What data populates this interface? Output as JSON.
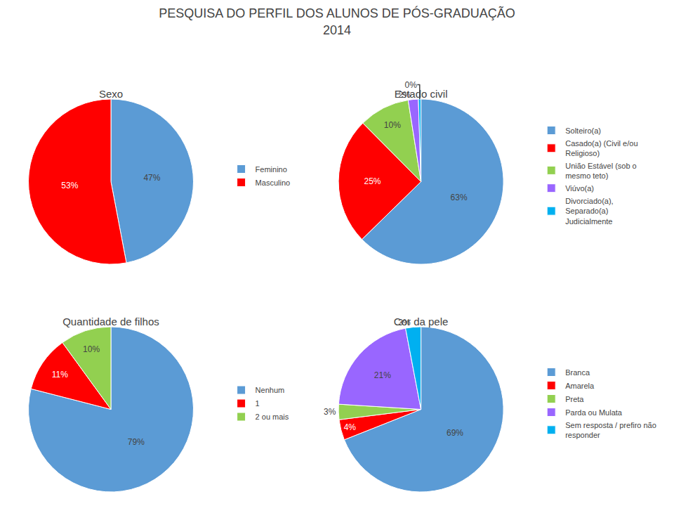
{
  "title": "PESQUISA DO PERFIL DOS ALUNOS DE PÓS-GRADUAÇÃO",
  "subtitle": "2014",
  "chart_data": [
    {
      "type": "pie",
      "title": "Sexo",
      "categories": [
        "Feminino",
        "Masculino"
      ],
      "values": [
        47,
        53
      ],
      "value_labels": [
        "47%",
        "53%"
      ],
      "colors": [
        "#5b9bd5",
        "#ff0000"
      ],
      "data_labels": true,
      "legend": "right"
    },
    {
      "type": "pie",
      "title": "Estado civil",
      "categories": [
        "Solteiro(a)",
        "Casado(a) (Civil e/ou\nReligioso)",
        "União Estável (sob o\nmesmo teto)",
        "Viúvo(a)",
        "Divorciado(a),\nSeparado(a)\nJudicialmente"
      ],
      "values": [
        63,
        25,
        10,
        2,
        0.5
      ],
      "value_labels": [
        "63%",
        "25%",
        "10%",
        "2%",
        "0%"
      ],
      "colors": [
        "#5b9bd5",
        "#ff0000",
        "#92d050",
        "#9966ff",
        "#00b0f0"
      ],
      "data_labels": true,
      "legend": "right"
    },
    {
      "type": "pie",
      "title": "Quantidade de filhos",
      "categories": [
        "Nenhum",
        "1",
        "2 ou mais"
      ],
      "values": [
        79,
        11,
        10
      ],
      "value_labels": [
        "79%",
        "11%",
        "10%"
      ],
      "colors": [
        "#5b9bd5",
        "#ff0000",
        "#92d050"
      ],
      "data_labels": true,
      "legend": "right"
    },
    {
      "type": "pie",
      "title": "Cor da pele",
      "categories": [
        "Branca",
        "Amarela",
        "Preta",
        "Parda ou Mulata",
        "Sem resposta / prefiro não\nresponder"
      ],
      "values": [
        69,
        4,
        3,
        21,
        3
      ],
      "value_labels": [
        "69%",
        "4%",
        "3%",
        "21%",
        "3%"
      ],
      "colors": [
        "#5b9bd5",
        "#ff0000",
        "#92d050",
        "#9966ff",
        "#00b0f0"
      ],
      "data_labels": true,
      "legend": "right"
    }
  ]
}
